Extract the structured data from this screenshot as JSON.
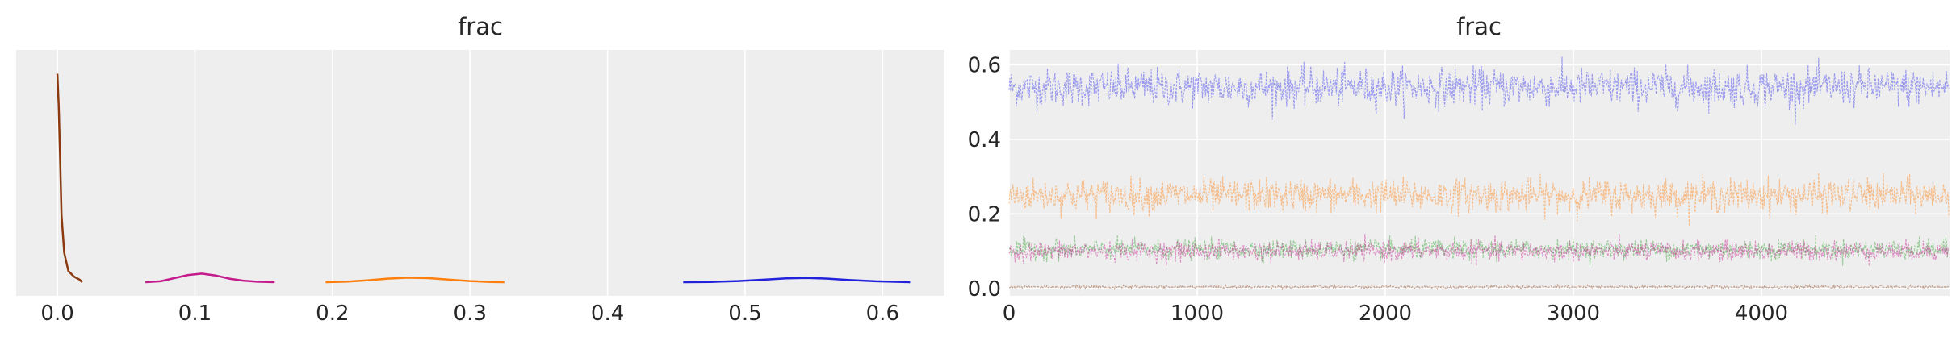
{
  "chart_data": [
    {
      "type": "area",
      "title": "frac",
      "xlabel": "",
      "ylabel": "",
      "xlim": [
        -0.03,
        0.645
      ],
      "xticks": [
        0.0,
        0.1,
        0.2,
        0.3,
        0.4,
        0.5,
        0.6
      ],
      "xtick_labels": [
        "0.0",
        "0.1",
        "0.2",
        "0.3",
        "0.4",
        "0.5",
        "0.6"
      ],
      "yticks_visible": false,
      "grid": true,
      "series": [
        {
          "color": "#8B3A0F",
          "x": [
            0.0,
            0.001,
            0.002,
            0.003,
            0.005,
            0.008,
            0.012,
            0.016,
            0.018
          ],
          "y": [
            0.93,
            0.78,
            0.55,
            0.3,
            0.13,
            0.05,
            0.025,
            0.012,
            0.0
          ]
        },
        {
          "color": "#C41B8C",
          "x": [
            0.064,
            0.075,
            0.085,
            0.095,
            0.105,
            0.115,
            0.125,
            0.135,
            0.145,
            0.158
          ],
          "y": [
            0.0,
            0.004,
            0.018,
            0.032,
            0.038,
            0.03,
            0.016,
            0.007,
            0.002,
            0.0
          ]
        },
        {
          "color": "#FF7F0E",
          "x": [
            0.195,
            0.21,
            0.225,
            0.24,
            0.255,
            0.27,
            0.285,
            0.3,
            0.315,
            0.325
          ],
          "y": [
            0.0,
            0.002,
            0.008,
            0.016,
            0.02,
            0.018,
            0.011,
            0.005,
            0.001,
            0.0
          ]
        },
        {
          "color": "#2222DD",
          "x": [
            0.455,
            0.475,
            0.495,
            0.515,
            0.53,
            0.545,
            0.56,
            0.575,
            0.595,
            0.62
          ],
          "y": [
            0.0,
            0.001,
            0.005,
            0.012,
            0.017,
            0.019,
            0.016,
            0.01,
            0.004,
            0.0
          ]
        }
      ]
    },
    {
      "type": "line",
      "title": "frac",
      "xlabel": "",
      "ylabel": "",
      "xlim": [
        0,
        5000
      ],
      "ylim": [
        -0.02,
        0.64
      ],
      "xticks": [
        0,
        1000,
        2000,
        3000,
        4000
      ],
      "xtick_labels": [
        "0",
        "1000",
        "2000",
        "3000",
        "4000"
      ],
      "yticks": [
        0.0,
        0.2,
        0.4,
        0.6
      ],
      "ytick_labels": [
        "0.0",
        "0.2",
        "0.4",
        "0.6"
      ],
      "grid": true,
      "draws": 5000,
      "series": [
        {
          "color": "#3333EE",
          "mean": 0.54,
          "sd": 0.025
        },
        {
          "color": "#FF7F0E",
          "mean": 0.25,
          "sd": 0.022
        },
        {
          "color": "#2CA02C",
          "mean": 0.105,
          "sd": 0.013
        },
        {
          "color": "#C41B8C",
          "mean": 0.1,
          "sd": 0.013
        },
        {
          "color": "#8B3A0F",
          "mean": 0.004,
          "sd": 0.002
        }
      ]
    }
  ]
}
